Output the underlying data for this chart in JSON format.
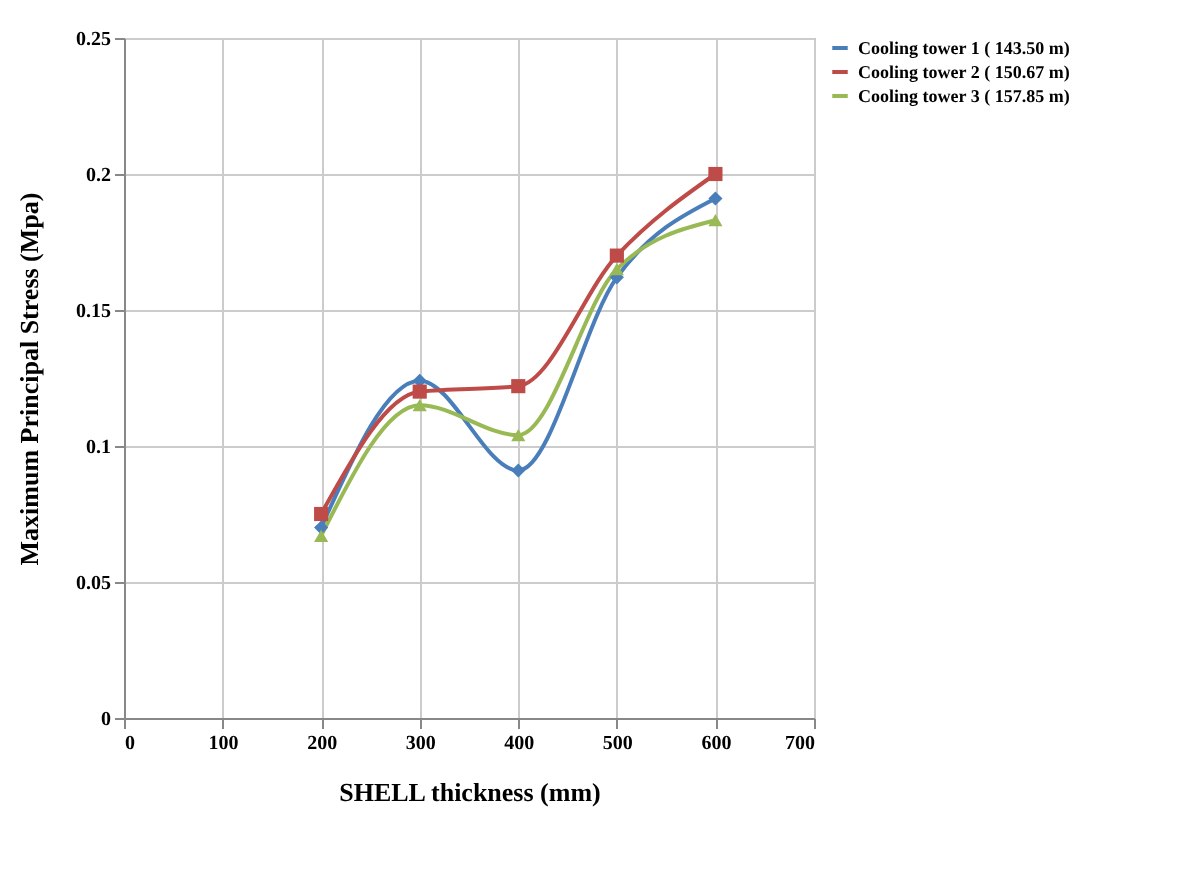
{
  "chart_data": {
    "type": "line",
    "xlabel": "SHELL thickness (mm)",
    "ylabel": "Maximum Principal Stress (Mpa)",
    "x": [
      200,
      300,
      400,
      500,
      600
    ],
    "series": [
      {
        "name": "Cooling tower 1 ( 143.50 m)",
        "color": "#4a7ebb",
        "marker": "diamond",
        "values": [
          0.07,
          0.124,
          0.091,
          0.162,
          0.191
        ]
      },
      {
        "name": "Cooling tower 2 ( 150.67 m)",
        "color": "#be4b48",
        "marker": "square",
        "values": [
          0.075,
          0.12,
          0.122,
          0.17,
          0.2
        ]
      },
      {
        "name": "Cooling tower 3 ( 157.85 m)",
        "color": "#98b954",
        "marker": "triangle",
        "values": [
          0.067,
          0.115,
          0.104,
          0.165,
          0.183
        ]
      }
    ],
    "xlim": [
      0,
      700
    ],
    "xticks": [
      0,
      100,
      200,
      300,
      400,
      500,
      600,
      700
    ],
    "ylim": [
      0,
      0.25
    ],
    "yticks": [
      0,
      0.05,
      {
        "value": 0.1,
        "label": "0.1"
      },
      0.15,
      {
        "value": 0.2,
        "label": "0.2"
      },
      0.25
    ],
    "grid": true,
    "legend": "right"
  }
}
